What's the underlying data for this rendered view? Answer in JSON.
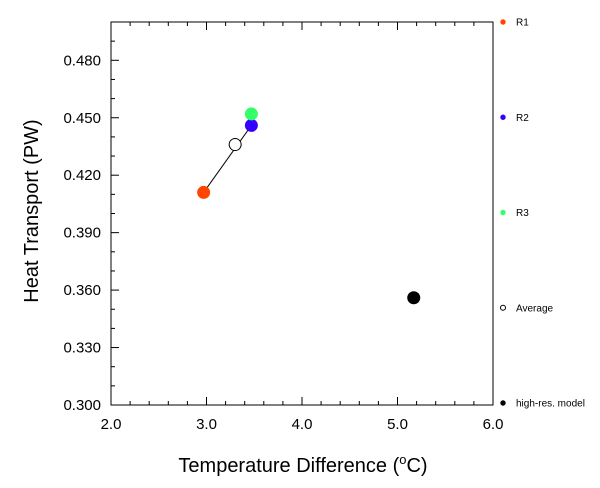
{
  "chart_data": {
    "type": "scatter",
    "title": "",
    "xlabel_prefix": "Temperature Difference (",
    "xlabel_sup": "o",
    "xlabel_suffix": "C)",
    "ylabel": "Heat Transport (PW)",
    "xlim": [
      2.0,
      6.0
    ],
    "ylim": [
      0.3,
      0.5
    ],
    "x_ticks": [
      "2.0",
      "3.0",
      "4.0",
      "5.0",
      "6.0"
    ],
    "y_ticks": [
      "0.300",
      "0.330",
      "0.360",
      "0.390",
      "0.420",
      "0.450",
      "0.480"
    ],
    "grid": false,
    "legend_position": "right",
    "series": [
      {
        "name": "R1",
        "x": 2.97,
        "y": 0.411,
        "color": "#ff4500",
        "marker": "filled-circle"
      },
      {
        "name": "R2",
        "x": 3.47,
        "y": 0.446,
        "color": "#3300ff",
        "marker": "filled-circle"
      },
      {
        "name": "R3",
        "x": 3.47,
        "y": 0.452,
        "color": "#33ff66",
        "marker": "filled-circle"
      },
      {
        "name": "Average",
        "x": 3.3,
        "y": 0.436,
        "color": "#000000",
        "marker": "open-circle"
      },
      {
        "name": "high-res. model",
        "x": 5.17,
        "y": 0.356,
        "color": "#000000",
        "marker": "filled-circle"
      }
    ],
    "connector": {
      "from": "R1",
      "to": "R2",
      "color": "#000000"
    }
  }
}
